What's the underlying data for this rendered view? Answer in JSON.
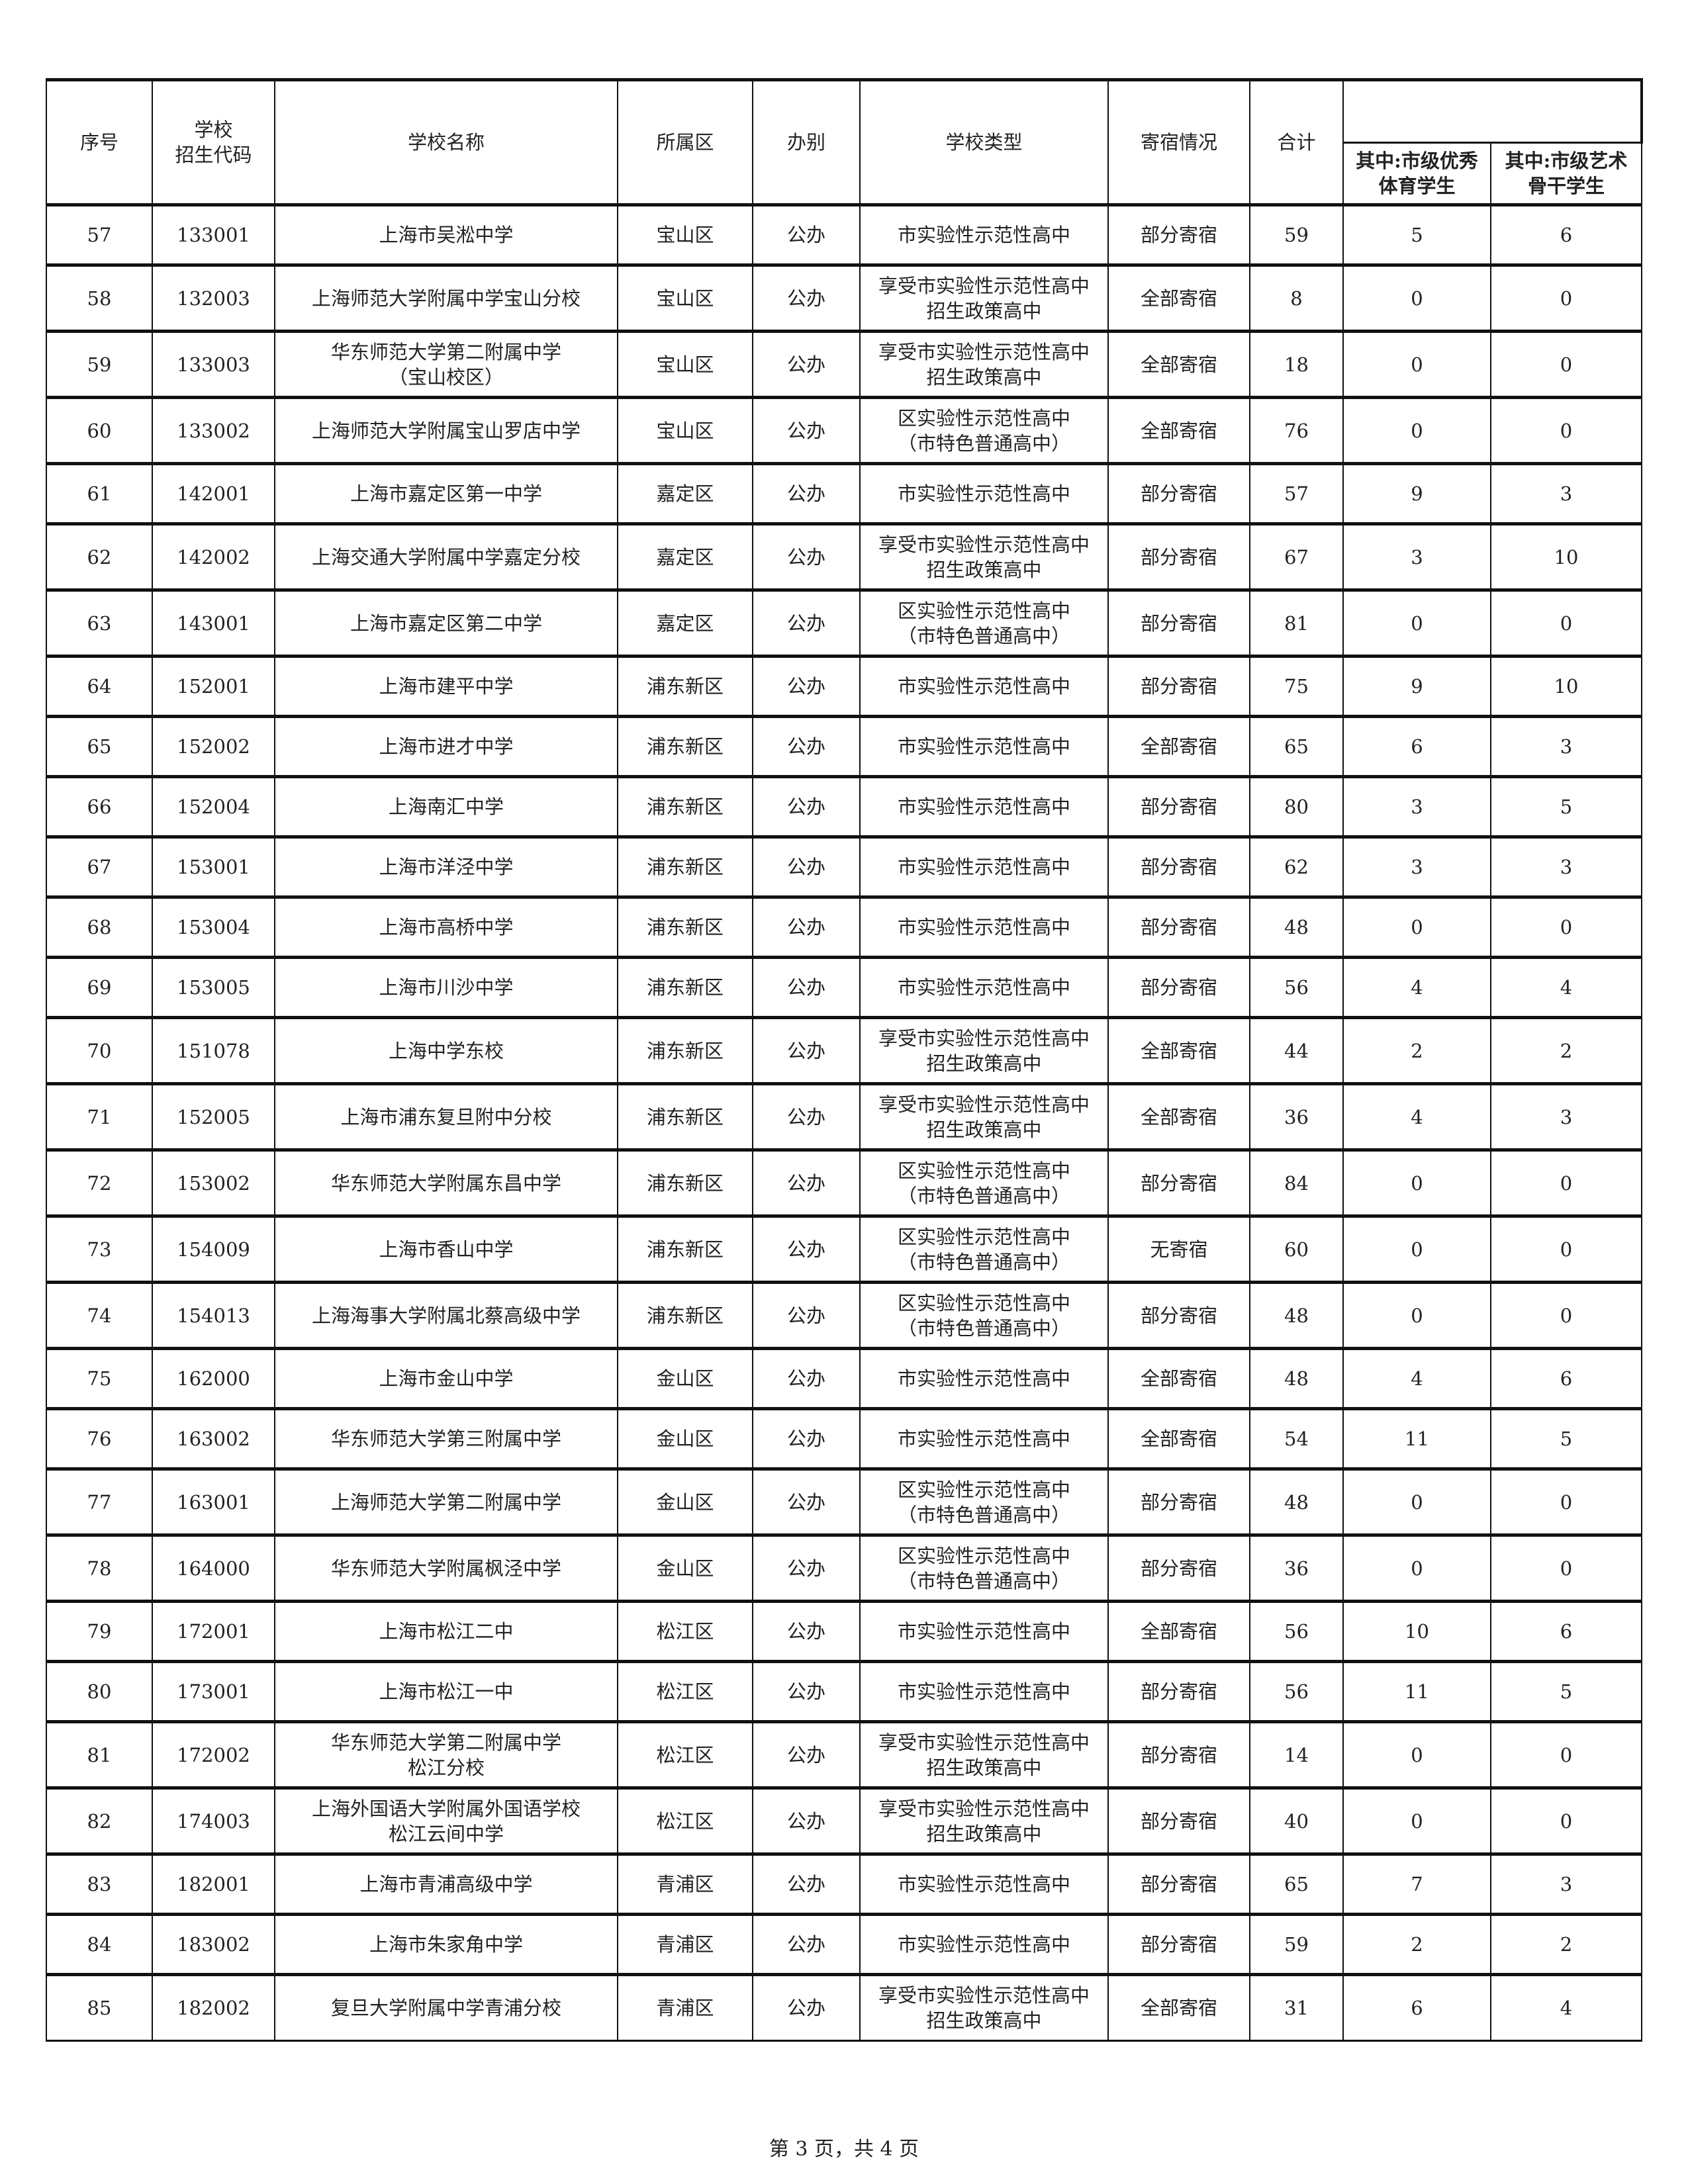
{
  "headers": {
    "seq": "序号",
    "code": "学校\n招生代码",
    "name": "学校名称",
    "district": "所属区",
    "type_run": "办别",
    "school_type": "学校类型",
    "boarding": "寄宿情况",
    "total": "合计",
    "sports": "其中:市级优秀\n体育学生",
    "arts": "其中:市级艺术\n骨干学生"
  },
  "rows": [
    [
      "57",
      "133001",
      "上海市吴淞中学",
      "宝山区",
      "公办",
      "市实验性示范性高中",
      "部分寄宿",
      "59",
      "5",
      "6"
    ],
    [
      "58",
      "132003",
      "上海师范大学附属中学宝山分校",
      "宝山区",
      "公办",
      "享受市实验性示范性高中\n招生政策高中",
      "全部寄宿",
      "8",
      "0",
      "0"
    ],
    [
      "59",
      "133003",
      "华东师范大学第二附属中学\n（宝山校区）",
      "宝山区",
      "公办",
      "享受市实验性示范性高中\n招生政策高中",
      "全部寄宿",
      "18",
      "0",
      "0"
    ],
    [
      "60",
      "133002",
      "上海师范大学附属宝山罗店中学",
      "宝山区",
      "公办",
      "区实验性示范性高中\n（市特色普通高中）",
      "全部寄宿",
      "76",
      "0",
      "0"
    ],
    [
      "61",
      "142001",
      "上海市嘉定区第一中学",
      "嘉定区",
      "公办",
      "市实验性示范性高中",
      "部分寄宿",
      "57",
      "9",
      "3"
    ],
    [
      "62",
      "142002",
      "上海交通大学附属中学嘉定分校",
      "嘉定区",
      "公办",
      "享受市实验性示范性高中\n招生政策高中",
      "部分寄宿",
      "67",
      "3",
      "10"
    ],
    [
      "63",
      "143001",
      "上海市嘉定区第二中学",
      "嘉定区",
      "公办",
      "区实验性示范性高中\n（市特色普通高中）",
      "部分寄宿",
      "81",
      "0",
      "0"
    ],
    [
      "64",
      "152001",
      "上海市建平中学",
      "浦东新区",
      "公办",
      "市实验性示范性高中",
      "部分寄宿",
      "75",
      "9",
      "10"
    ],
    [
      "65",
      "152002",
      "上海市进才中学",
      "浦东新区",
      "公办",
      "市实验性示范性高中",
      "全部寄宿",
      "65",
      "6",
      "3"
    ],
    [
      "66",
      "152004",
      "上海南汇中学",
      "浦东新区",
      "公办",
      "市实验性示范性高中",
      "部分寄宿",
      "80",
      "3",
      "5"
    ],
    [
      "67",
      "153001",
      "上海市洋泾中学",
      "浦东新区",
      "公办",
      "市实验性示范性高中",
      "部分寄宿",
      "62",
      "3",
      "3"
    ],
    [
      "68",
      "153004",
      "上海市高桥中学",
      "浦东新区",
      "公办",
      "市实验性示范性高中",
      "部分寄宿",
      "48",
      "0",
      "0"
    ],
    [
      "69",
      "153005",
      "上海市川沙中学",
      "浦东新区",
      "公办",
      "市实验性示范性高中",
      "部分寄宿",
      "56",
      "4",
      "4"
    ],
    [
      "70",
      "151078",
      "上海中学东校",
      "浦东新区",
      "公办",
      "享受市实验性示范性高中\n招生政策高中",
      "全部寄宿",
      "44",
      "2",
      "2"
    ],
    [
      "71",
      "152005",
      "上海市浦东复旦附中分校",
      "浦东新区",
      "公办",
      "享受市实验性示范性高中\n招生政策高中",
      "全部寄宿",
      "36",
      "4",
      "3"
    ],
    [
      "72",
      "153002",
      "华东师范大学附属东昌中学",
      "浦东新区",
      "公办",
      "区实验性示范性高中\n（市特色普通高中）",
      "部分寄宿",
      "84",
      "0",
      "0"
    ],
    [
      "73",
      "154009",
      "上海市香山中学",
      "浦东新区",
      "公办",
      "区实验性示范性高中\n（市特色普通高中）",
      "无寄宿",
      "60",
      "0",
      "0"
    ],
    [
      "74",
      "154013",
      "上海海事大学附属北蔡高级中学",
      "浦东新区",
      "公办",
      "区实验性示范性高中\n（市特色普通高中）",
      "部分寄宿",
      "48",
      "0",
      "0"
    ],
    [
      "75",
      "162000",
      "上海市金山中学",
      "金山区",
      "公办",
      "市实验性示范性高中",
      "全部寄宿",
      "48",
      "4",
      "6"
    ],
    [
      "76",
      "163002",
      "华东师范大学第三附属中学",
      "金山区",
      "公办",
      "市实验性示范性高中",
      "全部寄宿",
      "54",
      "11",
      "5"
    ],
    [
      "77",
      "163001",
      "上海师范大学第二附属中学",
      "金山区",
      "公办",
      "区实验性示范性高中\n（市特色普通高中）",
      "部分寄宿",
      "48",
      "0",
      "0"
    ],
    [
      "78",
      "164000",
      "华东师范大学附属枫泾中学",
      "金山区",
      "公办",
      "区实验性示范性高中\n（市特色普通高中）",
      "部分寄宿",
      "36",
      "0",
      "0"
    ],
    [
      "79",
      "172001",
      "上海市松江二中",
      "松江区",
      "公办",
      "市实验性示范性高中",
      "全部寄宿",
      "56",
      "10",
      "6"
    ],
    [
      "80",
      "173001",
      "上海市松江一中",
      "松江区",
      "公办",
      "市实验性示范性高中",
      "部分寄宿",
      "56",
      "11",
      "5"
    ],
    [
      "81",
      "172002",
      "华东师范大学第二附属中学\n松江分校",
      "松江区",
      "公办",
      "享受市实验性示范性高中\n招生政策高中",
      "部分寄宿",
      "14",
      "0",
      "0"
    ],
    [
      "82",
      "174003",
      "上海外国语大学附属外国语学校\n松江云间中学",
      "松江区",
      "公办",
      "享受市实验性示范性高中\n招生政策高中",
      "部分寄宿",
      "40",
      "0",
      "0"
    ],
    [
      "83",
      "182001",
      "上海市青浦高级中学",
      "青浦区",
      "公办",
      "市实验性示范性高中",
      "部分寄宿",
      "65",
      "7",
      "3"
    ],
    [
      "84",
      "183002",
      "上海市朱家角中学",
      "青浦区",
      "公办",
      "市实验性示范性高中",
      "部分寄宿",
      "59",
      "2",
      "2"
    ],
    [
      "85",
      "182002",
      "复旦大学附属中学青浦分校",
      "青浦区",
      "公办",
      "享受市实验性示范性高中\n招生政策高中",
      "全部寄宿",
      "31",
      "6",
      "4"
    ]
  ],
  "footer": "第 3 页，共 4 页"
}
